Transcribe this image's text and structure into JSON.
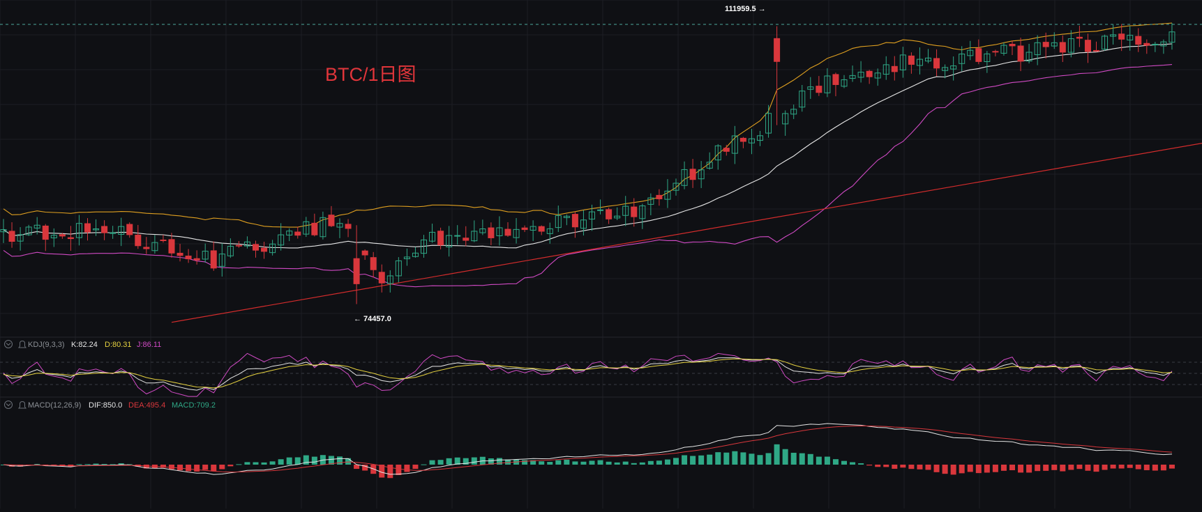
{
  "chart_title": "BTC/1日图",
  "colors": {
    "background": "#0f1014",
    "grid": "#1c1e24",
    "up": "#2fa886",
    "down": "#d9373c",
    "boll_mid": "#e6e6e6",
    "boll_upper": "#e0a020",
    "boll_lower": "#d04ac4",
    "trendline": "#d42c2c",
    "title": "#e0353a",
    "dashed_ref": "#4ea79b",
    "label": "#9aa0a6"
  },
  "price_annotations": {
    "high_label": "111959.5 →",
    "low_label": "← 74457.0"
  },
  "indicators": {
    "kdj": {
      "name": "KDJ(9,3,3)",
      "k_label": "K:82.24",
      "d_label": "D:80.31",
      "j_label": "J:86.11",
      "k_color": "#e6e6e6",
      "d_color": "#e6d240",
      "j_color": "#d04ac4"
    },
    "macd": {
      "name": "MACD(12,26,9)",
      "dif_label": "DIF:850.0",
      "dea_label": "DEA:495.4",
      "macd_label": "MACD:709.2",
      "dif_color": "#e6e6e6",
      "dea_color": "#d9373c",
      "macd_color": "#2fa886"
    }
  },
  "chart_data": {
    "type": "candlestick",
    "title": "BTC/1日图",
    "price_high": 111959.5,
    "price_low": 74457.0,
    "ylim": [
      71500,
      115500
    ],
    "trend": [
      [
        0,
        84000
      ],
      [
        12,
        84800
      ],
      [
        25,
        80500
      ],
      [
        40,
        86000
      ],
      [
        45,
        78000
      ],
      [
        50,
        83000
      ],
      [
        60,
        84000
      ],
      [
        75,
        87000
      ],
      [
        100,
        106000
      ],
      [
        130,
        109500
      ],
      [
        140,
        110500
      ]
    ],
    "anchor_bars": {
      "high": 92,
      "low": 42
    },
    "bollinger": {
      "period": 20,
      "stddev": 2
    },
    "kdj": {
      "k": 82.24,
      "d": 80.31,
      "j": 86.11
    },
    "macd": {
      "dif": 850.0,
      "dea": 495.4,
      "macd": 709.2
    },
    "trendline_price": [
      [
        20,
        72000
      ],
      [
        140,
        96500
      ]
    ]
  }
}
